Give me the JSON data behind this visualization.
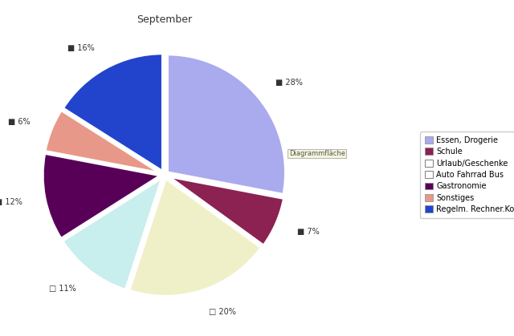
{
  "title": "September",
  "labels": [
    "Essen, Drogerie",
    "Schule",
    "Urlaub/Geschenke",
    "Auto Fahrrad Bus",
    "Gastronomie",
    "Sonstiges",
    "Regelm. Rechner.Kosten/Monat"
  ],
  "values": [
    28,
    7,
    20,
    11,
    12,
    6,
    16
  ],
  "colors": [
    "#aaaaee",
    "#8b2252",
    "#f0f0c8",
    "#c8eeee",
    "#580058",
    "#e89888",
    "#2244cc"
  ],
  "pct_labels": [
    "28%",
    "7%",
    "20%",
    "11%",
    "12%",
    "6%",
    "16%"
  ],
  "open_markers": [
    false,
    false,
    true,
    true,
    false,
    false,
    false
  ],
  "center_label": "Diagrammfläche",
  "background_color": "#ffffff",
  "title_fontsize": 9,
  "legend_labels": [
    "Essen, Drogerie",
    "Schule",
    "Urlaub/Geschenke",
    "Auto Fahrrad Bus",
    "Gastronomie",
    "Sonstiges",
    "Regelm. Rechner.Kosten/Monat"
  ]
}
